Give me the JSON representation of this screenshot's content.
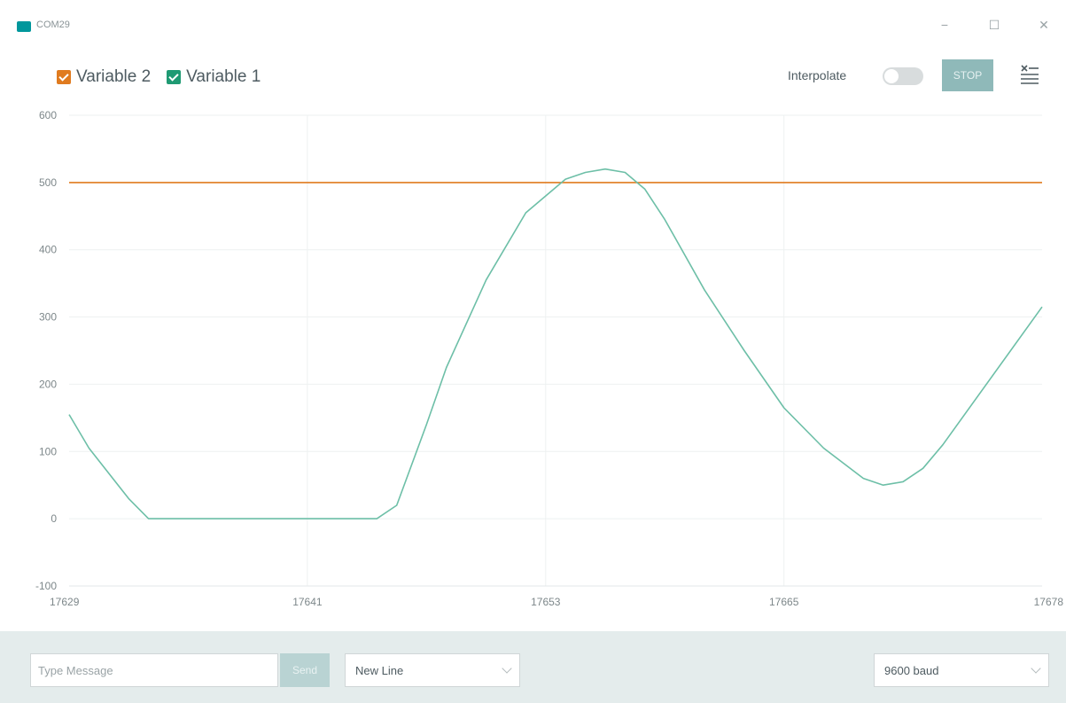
{
  "window": {
    "title": "COM29",
    "minimize_glyph": "−",
    "maximize_glyph": "☐",
    "close_glyph": "✕"
  },
  "toolbar": {
    "legend": [
      {
        "label": "Variable 2",
        "color": "#e07b1f",
        "checked": true
      },
      {
        "label": "Variable 1",
        "color": "#1f9a73",
        "checked": true
      }
    ],
    "interpolate_label": "Interpolate",
    "interpolate_on": false,
    "stop_label": "STOP",
    "settings_icon": "list-settings-icon"
  },
  "chart_data": {
    "type": "line",
    "xlim": [
      17629,
      17678
    ],
    "ylim": [
      -100,
      600
    ],
    "x_ticks": [
      17629,
      17641,
      17653,
      17665,
      17678
    ],
    "y_ticks": [
      -100,
      0,
      100,
      200,
      300,
      400,
      500,
      600
    ],
    "grid": true,
    "series": [
      {
        "name": "Variable 2",
        "color": "#e07b1f",
        "x": [
          17629,
          17678
        ],
        "y": [
          500,
          500
        ]
      },
      {
        "name": "Variable 1",
        "color": "#6dbfa7",
        "x": [
          17629,
          17630,
          17632,
          17633,
          17634,
          17636,
          17641,
          17644.5,
          17645.5,
          17647,
          17648,
          17650,
          17652,
          17654,
          17655,
          17656,
          17657,
          17658,
          17659,
          17661,
          17663,
          17665,
          17667,
          17669,
          17670,
          17671,
          17672,
          17673,
          17678
        ],
        "y": [
          155,
          105,
          30,
          0,
          0,
          0,
          0,
          0,
          20,
          140,
          225,
          355,
          455,
          505,
          515,
          520,
          515,
          490,
          445,
          340,
          250,
          165,
          105,
          60,
          50,
          55,
          75,
          110,
          315
        ]
      }
    ]
  },
  "footer": {
    "message_placeholder": "Type Message",
    "send_label": "Send",
    "line_ending": "New Line",
    "baud_rate": "9600 baud"
  }
}
